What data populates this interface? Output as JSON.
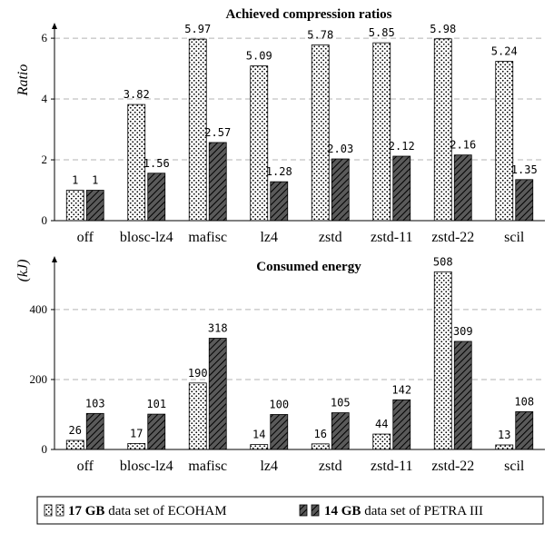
{
  "chart_data": [
    {
      "type": "bar",
      "title": "Achieved compression ratios",
      "ylabel": "Ratio",
      "categories": [
        "off",
        "blosc-lz4",
        "mafisc",
        "lz4",
        "zstd",
        "zstd-11",
        "zstd-22",
        "scil"
      ],
      "series": [
        {
          "name": "17 GB data set of ECOHAM",
          "values": [
            1,
            3.82,
            5.97,
            5.09,
            5.78,
            5.85,
            5.98,
            5.24
          ],
          "labels": [
            "1",
            "3.82",
            "5.97",
            "5.09",
            "5.78",
            "5.85",
            "5.98",
            "5.24"
          ]
        },
        {
          "name": "14 GB data set of PETRA III",
          "values": [
            1,
            1.56,
            2.57,
            1.28,
            2.03,
            2.12,
            2.16,
            1.35
          ],
          "labels": [
            "1",
            "1.56",
            "2.57",
            "1.28",
            "2.03",
            "2.12",
            "2.16",
            "1.35"
          ]
        }
      ],
      "yticks": [
        "0",
        "2",
        "4",
        "6"
      ],
      "ylim": [
        0,
        6.6
      ],
      "grid": true
    },
    {
      "type": "bar",
      "title": "Consumed energy",
      "ylabel": "(kJ)",
      "categories": [
        "off",
        "blosc-lz4",
        "mafisc",
        "lz4",
        "zstd",
        "zstd-11",
        "zstd-22",
        "scil"
      ],
      "series": [
        {
          "name": "17 GB data set of ECOHAM",
          "values": [
            26,
            17,
            190,
            14,
            16,
            44,
            508,
            13
          ],
          "labels": [
            "26",
            "17",
            "190",
            "14",
            "16",
            "44",
            "508",
            "13"
          ]
        },
        {
          "name": "14 GB data set of PETRA III",
          "values": [
            103,
            101,
            318,
            100,
            105,
            142,
            309,
            108
          ],
          "labels": [
            "103",
            "101",
            "318",
            "100",
            "105",
            "142",
            "309",
            "108"
          ]
        }
      ],
      "yticks": [
        "0",
        "200",
        "400"
      ],
      "ylim": [
        0,
        540
      ],
      "grid": true
    }
  ],
  "legend": {
    "placement": "bottom",
    "items": [
      {
        "bold": "17 GB",
        "rest": " data set of ECOHAM",
        "pattern": "dots"
      },
      {
        "bold": "14 GB",
        "rest": " data set of PETRA III",
        "pattern": "hatch"
      }
    ]
  }
}
